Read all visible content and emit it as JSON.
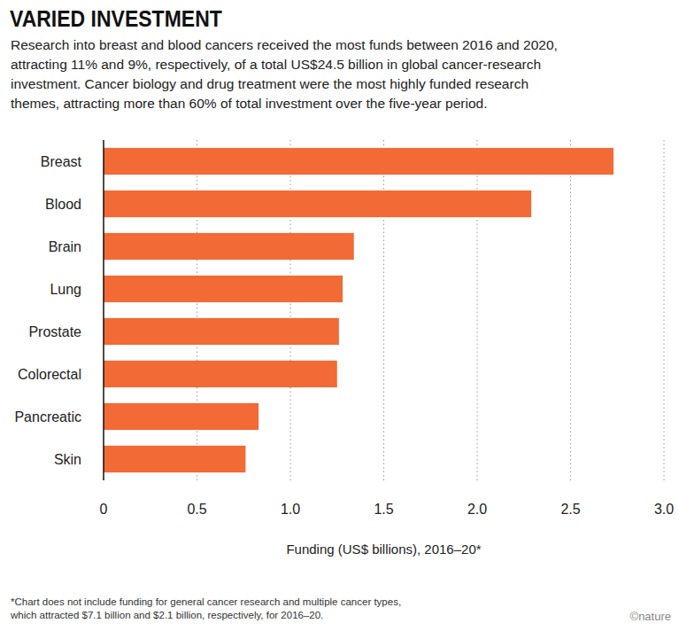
{
  "chart_data": {
    "type": "bar",
    "orientation": "horizontal",
    "title": "VARIED INVESTMENT",
    "subtitle": [
      "Research into breast and blood cancers received the most funds between 2016 and 2020,",
      "attracting 11% and 9%, respectively, of a total US$24.5 billion in global cancer-research",
      "investment. Cancer biology and drug treatment were the most highly funded research",
      "themes, attracting more than 60% of total investment over the five-year period."
    ],
    "categories": [
      "Breast",
      "Blood",
      "Brain",
      "Lung",
      "Prostate",
      "Colorectal",
      "Pancreatic",
      "Skin"
    ],
    "values": [
      2.73,
      2.29,
      1.34,
      1.28,
      1.26,
      1.25,
      0.83,
      0.76
    ],
    "color": "#f26a35",
    "xlabel": "Funding (US$ billions), 2016–20*",
    "xlim": [
      0,
      3
    ],
    "xticks": [
      0,
      0.5,
      {
        "value": 1,
        "label": "1.0"
      },
      1.5,
      {
        "value": 2,
        "label": "2.0"
      },
      2.5,
      {
        "value": 3,
        "label": "3.0"
      }
    ],
    "grid": true,
    "footnote": [
      "*Chart does not include funding for general cancer research and multiple cancer types,",
      "which attracted $7.1 billion and $2.1 billion, respectively, for 2016–20."
    ],
    "credit": "©nature"
  }
}
